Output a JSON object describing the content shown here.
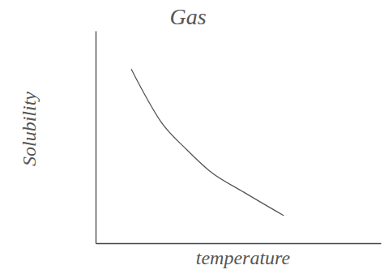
{
  "chart_data": {
    "type": "line",
    "title": "Gas",
    "x_label": "temperature",
    "y_label": "Solubility",
    "x": [
      1.25,
      1.6,
      2.3,
      3.2,
      4.0,
      5.2,
      6.6
    ],
    "values": [
      8.2,
      7.3,
      5.7,
      4.4,
      3.4,
      2.4,
      1.3
    ],
    "color": "#555555",
    "xlim": [
      0,
      10
    ],
    "ylim": [
      0,
      10
    ],
    "xticks": [],
    "yticks": [],
    "tick_labels": false,
    "grid": false
  }
}
